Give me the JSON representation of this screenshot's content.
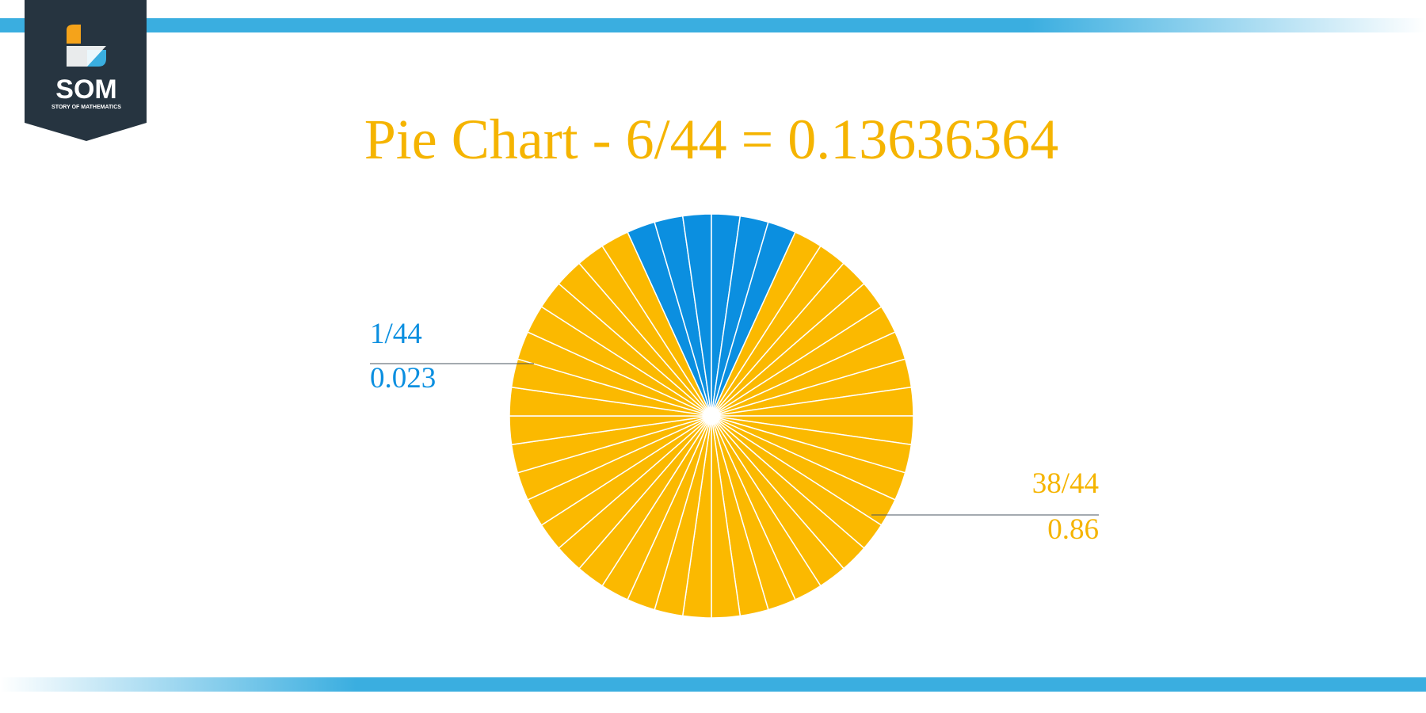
{
  "logo": {
    "name": "SOM",
    "tagline": "STORY OF MATHEMATICS"
  },
  "chart_data": {
    "type": "pie",
    "title": "Pie Chart - 6/44 = 0.13636364",
    "values": [
      1,
      1,
      1,
      1,
      1,
      1,
      1,
      1,
      1,
      1,
      1,
      1,
      1,
      1,
      1,
      1,
      1,
      1,
      1,
      1,
      1,
      1,
      1,
      1,
      1,
      1,
      1,
      1,
      1,
      1,
      1,
      1,
      1,
      1,
      1,
      1,
      1,
      1,
      1,
      1,
      1,
      1,
      1,
      1
    ],
    "colors": [
      "#0b8fe0",
      "#0b8fe0",
      "#0b8fe0",
      "#0b8fe0",
      "#0b8fe0",
      "#0b8fe0",
      "#fbb900",
      "#fbb900",
      "#fbb900",
      "#fbb900",
      "#fbb900",
      "#fbb900",
      "#fbb900",
      "#fbb900",
      "#fbb900",
      "#fbb900",
      "#fbb900",
      "#fbb900",
      "#fbb900",
      "#fbb900",
      "#fbb900",
      "#fbb900",
      "#fbb900",
      "#fbb900",
      "#fbb900",
      "#fbb900",
      "#fbb900",
      "#fbb900",
      "#fbb900",
      "#fbb900",
      "#fbb900",
      "#fbb900",
      "#fbb900",
      "#fbb900",
      "#fbb900",
      "#fbb900",
      "#fbb900",
      "#fbb900",
      "#fbb900",
      "#fbb900",
      "#fbb900",
      "#fbb900",
      "#fbb900",
      "#fbb900"
    ],
    "annotations": [
      {
        "fraction": "1/44",
        "decimal": "0.023",
        "color": "#0b8fe0"
      },
      {
        "fraction": "38/44",
        "decimal": "0.86",
        "color": "#f5b400"
      }
    ]
  }
}
